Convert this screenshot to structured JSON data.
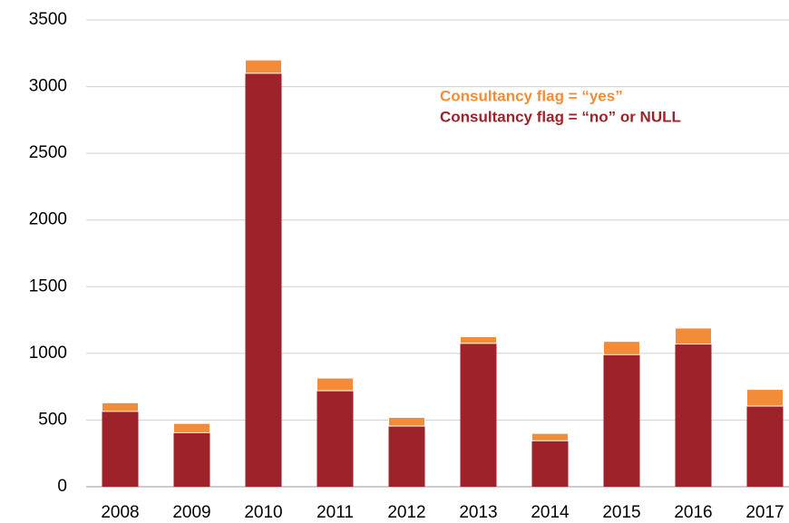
{
  "chart_data": {
    "type": "stacked_bar",
    "categories": [
      "2008",
      "2009",
      "2010",
      "2011",
      "2012",
      "2013",
      "2014",
      "2015",
      "2016",
      "2017"
    ],
    "series": [
      {
        "name": "Consultancy flag = “no” or NULL",
        "color": "#9e2229",
        "values": [
          565,
          405,
          3100,
          720,
          455,
          1075,
          345,
          990,
          1070,
          605
        ]
      },
      {
        "name": "Consultancy flag = “yes”",
        "color": "#f28c38",
        "values": [
          65,
          70,
          100,
          95,
          65,
          50,
          55,
          100,
          120,
          125
        ]
      }
    ],
    "ylim": [
      0,
      3500
    ],
    "yticks": [
      0,
      500,
      1000,
      1500,
      2000,
      2500,
      3000,
      3500
    ],
    "grid": true
  }
}
